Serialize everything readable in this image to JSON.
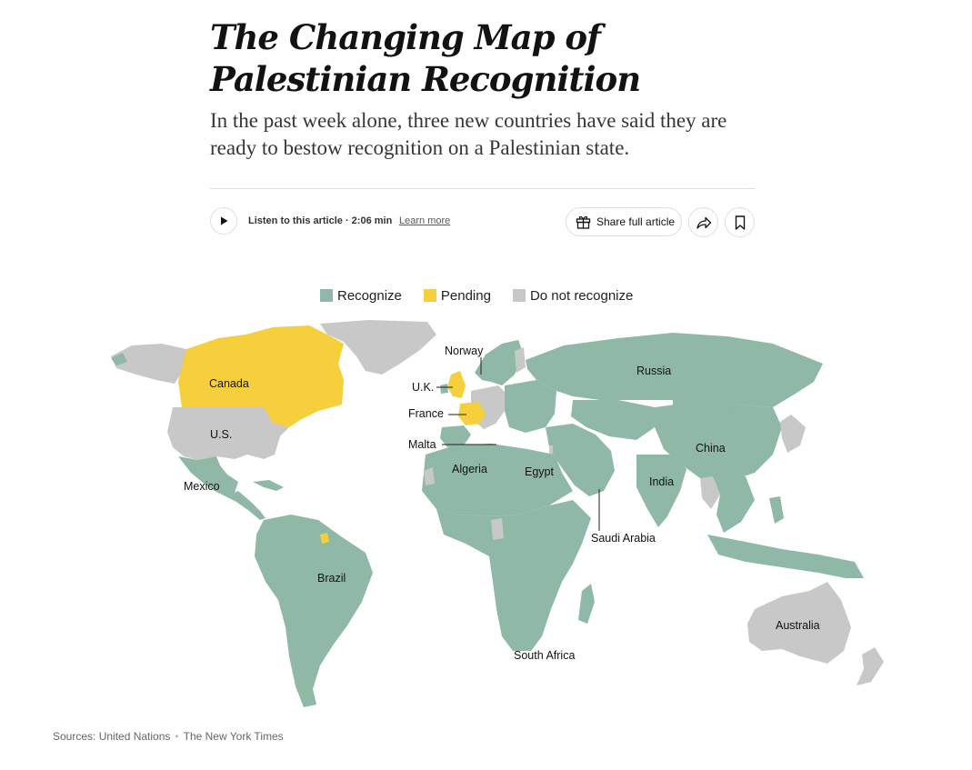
{
  "article": {
    "headline": "The Changing Map of Palestinian Recognition",
    "dek": "In the past week alone, three new countries have said they are ready to bestow recognition on a Palestinian state."
  },
  "toolbar": {
    "listen_text": "Listen to this article · 2:06 min",
    "learn_more": "Learn more",
    "share_full_article": "Share full article"
  },
  "legend": {
    "recognize": "Recognize",
    "pending": "Pending",
    "do_not_recognize": "Do not recognize"
  },
  "colors": {
    "recognize": "#8fb8a6",
    "pending": "#f5cf3c",
    "do_not_recognize": "#c8c8c8"
  },
  "map_labels": {
    "canada": "Canada",
    "us": "U.S.",
    "mexico": "Mexico",
    "brazil": "Brazil",
    "norway": "Norway",
    "uk": "U.K.",
    "france": "France",
    "malta": "Malta",
    "algeria": "Algeria",
    "egypt": "Egypt",
    "russia": "Russia",
    "china": "China",
    "india": "India",
    "saudi_arabia": "Saudi Arabia",
    "south_africa": "South Africa",
    "australia": "Australia"
  },
  "source": {
    "text": "Sources: United Nations",
    "credit": "The New York Times"
  }
}
